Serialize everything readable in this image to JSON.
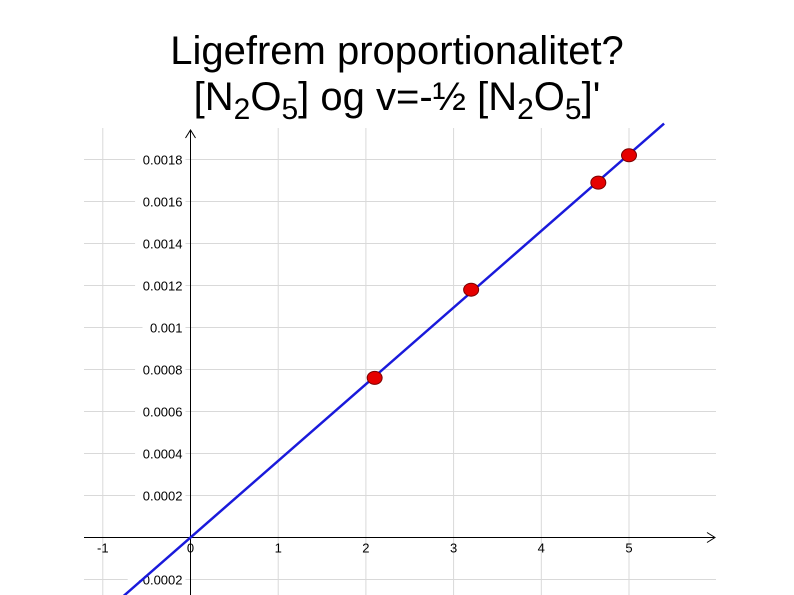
{
  "title": {
    "line1": "Ligefrem proportionalitet?",
    "line2": {
      "open": "[N",
      "sub1": "2",
      "o1": "O",
      "sub2": "5",
      "mid": "] og v=-½ [N",
      "sub3": "2",
      "o2": "O",
      "sub4": "5",
      "close": "]'"
    }
  },
  "colors": {
    "line": "#1a1adb",
    "point": "#e60000",
    "grid": "#d9d9d9",
    "axis": "#000000"
  },
  "chart_data": {
    "type": "scatter",
    "title": "",
    "xlabel": "",
    "ylabel": "",
    "xlim": [
      -1,
      6
    ],
    "ylim": [
      -0.00025,
      0.0019
    ],
    "grid": true,
    "x_ticks": [
      -1,
      0,
      1,
      2,
      3,
      4,
      5
    ],
    "x_tick_labels": [
      "-1",
      "0",
      "1",
      "2",
      "3",
      "4",
      "5"
    ],
    "y_ticks": [
      -0.0002,
      0.0002,
      0.0004,
      0.0006,
      0.0008,
      0.001,
      0.0012,
      0.0014,
      0.0016,
      0.0018
    ],
    "y_tick_labels": [
      "-0.0002",
      "0.0002",
      "0.0004",
      "0.0006",
      "0.0008",
      "0.001",
      "0.0012",
      "0.0014",
      "0.0016",
      "0.0018"
    ],
    "points": {
      "x": [
        2.1,
        3.2,
        4.65,
        5.0
      ],
      "y": [
        0.00076,
        0.00118,
        0.00169,
        0.00182
      ]
    },
    "fit_line": {
      "slope": 0.000365,
      "intercept": 0
    }
  }
}
